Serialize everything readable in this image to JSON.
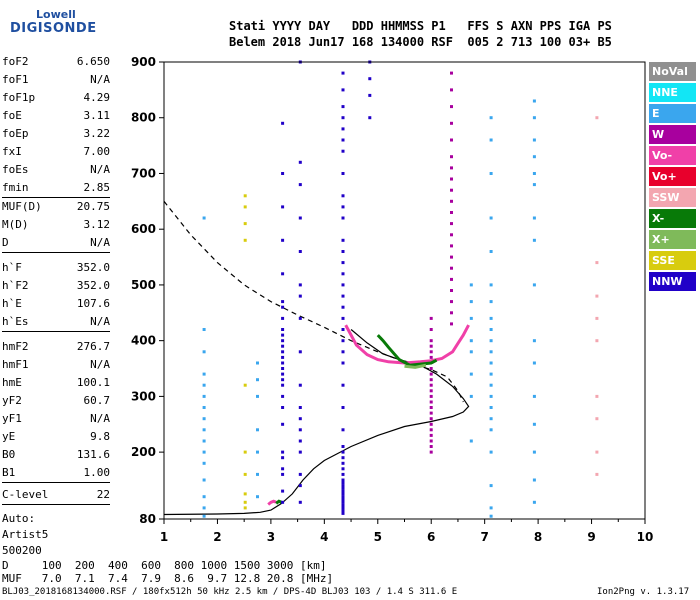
{
  "logo": {
    "top": "Lowell",
    "main": "DIGISONDE"
  },
  "header": {
    "line1": "Stati YYYY DAY   DDD HHMMSS P1   FFS S AXN PPS IGA PS",
    "line2": "Belem 2018 Jun17 168 134000 RSF  005 2 713 100 03+ B5"
  },
  "params": {
    "group1": [
      {
        "label": "foF2",
        "value": "6.650"
      },
      {
        "label": "foF1",
        "value": "N/A"
      },
      {
        "label": "foF1p",
        "value": "4.29"
      },
      {
        "label": "foE",
        "value": "3.11"
      },
      {
        "label": "foEp",
        "value": "3.22"
      },
      {
        "label": "fxI",
        "value": "7.00"
      },
      {
        "label": "foEs",
        "value": "N/A"
      },
      {
        "label": "fmin",
        "value": "2.85"
      }
    ],
    "group2": [
      {
        "label": "MUF(D)",
        "value": "20.75"
      },
      {
        "label": "M(D)",
        "value": "3.12"
      },
      {
        "label": "D",
        "value": "N/A"
      }
    ],
    "group3": [
      {
        "label": "h`F",
        "value": "352.0"
      },
      {
        "label": "h`F2",
        "value": "352.0"
      },
      {
        "label": "h`E",
        "value": "107.6"
      },
      {
        "label": "h`Es",
        "value": "N/A"
      }
    ],
    "group4": [
      {
        "label": "hmF2",
        "value": "276.7"
      },
      {
        "label": "hmF1",
        "value": "N/A"
      },
      {
        "label": "hmE",
        "value": "100.1"
      },
      {
        "label": "yF2",
        "value": "60.7"
      },
      {
        "label": "yF1",
        "value": "N/A"
      },
      {
        "label": "yE",
        "value": "9.8"
      },
      {
        "label": "B0",
        "value": "131.6"
      },
      {
        "label": "B1",
        "value": "1.00"
      }
    ],
    "clevel": {
      "label": "C-level",
      "value": "22"
    },
    "auto": [
      "Auto:",
      "Artist5",
      "500200"
    ]
  },
  "legend": [
    {
      "label": "NoVal",
      "color": "#909090",
      "text_color": "#ffffff"
    },
    {
      "label": "NNE",
      "color": "#12e6f5",
      "text_color": "#ffffff"
    },
    {
      "label": "E",
      "color": "#3aa6ee",
      "text_color": "#ffffff"
    },
    {
      "label": "W",
      "color": "#a8009e",
      "text_color": "#ffffff"
    },
    {
      "label": "Vo-",
      "color": "#f040a8",
      "text_color": "#ffffff"
    },
    {
      "label": "Vo+",
      "color": "#e8002c",
      "text_color": "#ffffff"
    },
    {
      "label": "SSW",
      "color": "#f3a6b0",
      "text_color": "#ffffff"
    },
    {
      "label": "X-",
      "color": "#087a08",
      "text_color": "#ffffff"
    },
    {
      "label": "X+",
      "color": "#7fba5a",
      "text_color": "#ffffff"
    },
    {
      "label": "SSE",
      "color": "#d8cc0e",
      "text_color": "#ffffff"
    },
    {
      "label": "NNW",
      "color": "#2000c8",
      "text_color": "#ffffff"
    }
  ],
  "bottom": {
    "line1": "D     100  200  400  600  800 1000 1500 3000 [km]",
    "line2": "MUF   7.0  7.1  7.4  7.9  8.6  9.7 12.8 20.8 [MHz]"
  },
  "footer": {
    "left": "BLJ03_2018168134000.RSF / 180fx512h 50 kHz 2.5 km / DPS-4D BLJ03 103 / 1.4 S 311.6 E",
    "right": "Ion2Png v. 1.3.17"
  },
  "chart_data": {
    "type": "scatter",
    "x_ticks": [
      1,
      2,
      3,
      4,
      5,
      6,
      7,
      8,
      9,
      10
    ],
    "y_ticks": [
      80,
      200,
      300,
      400,
      500,
      600,
      700,
      800,
      900
    ],
    "xlim": [
      1,
      10
    ],
    "ylim": [
      80,
      900
    ],
    "grid": false,
    "legend_placement": "right",
    "series": [
      {
        "type": "line",
        "style": "dashed",
        "color": "#000000",
        "points": [
          [
            1.0,
            650
          ],
          [
            1.5,
            590
          ],
          [
            2.0,
            540
          ],
          [
            2.5,
            500
          ],
          [
            3.0,
            470
          ],
          [
            3.5,
            446
          ],
          [
            4.0,
            424
          ],
          [
            4.5,
            400
          ],
          [
            5.0,
            380
          ],
          [
            5.5,
            362
          ],
          [
            6.0,
            348
          ],
          [
            6.3,
            335
          ],
          [
            6.5,
            310
          ],
          [
            6.6,
            290
          ]
        ]
      },
      {
        "type": "line",
        "style": "solid",
        "color": "#000000",
        "points": [
          [
            1.0,
            88
          ],
          [
            2.0,
            89
          ],
          [
            2.5,
            90
          ],
          [
            2.8,
            92
          ],
          [
            3.0,
            96
          ],
          [
            3.2,
            108
          ],
          [
            3.4,
            125
          ],
          [
            3.6,
            150
          ],
          [
            3.8,
            170
          ],
          [
            4.0,
            185
          ],
          [
            4.5,
            210
          ],
          [
            5.0,
            230
          ],
          [
            5.5,
            246
          ],
          [
            6.0,
            255
          ],
          [
            6.4,
            264
          ],
          [
            6.6,
            272
          ],
          [
            6.7,
            282
          ],
          [
            6.6,
            296
          ],
          [
            6.4,
            318
          ],
          [
            6.1,
            340
          ],
          [
            5.8,
            356
          ],
          [
            5.4,
            366
          ],
          [
            5.1,
            376
          ],
          [
            4.8,
            396
          ],
          [
            4.5,
            420
          ]
        ]
      },
      {
        "type": "trace",
        "color": "#f040a8",
        "points": [
          [
            4.4,
            428
          ],
          [
            4.5,
            410
          ],
          [
            4.6,
            392
          ],
          [
            4.8,
            375
          ],
          [
            5.0,
            366
          ],
          [
            5.2,
            362
          ],
          [
            5.5,
            360
          ],
          [
            5.8,
            362
          ],
          [
            6.0,
            364
          ],
          [
            6.2,
            368
          ],
          [
            6.4,
            380
          ],
          [
            6.5,
            395
          ],
          [
            6.6,
            410
          ],
          [
            6.7,
            428
          ]
        ]
      },
      {
        "type": "trace",
        "color": "#087a08",
        "points": [
          [
            5.0,
            410
          ],
          [
            5.1,
            400
          ],
          [
            5.2,
            388
          ],
          [
            5.4,
            366
          ],
          [
            5.6,
            356
          ],
          [
            5.8,
            358
          ],
          [
            6.0,
            360
          ],
          [
            6.1,
            365
          ]
        ]
      },
      {
        "type": "trace",
        "color": "#7fba5a",
        "points": [
          [
            5.5,
            354
          ],
          [
            5.7,
            352
          ],
          [
            5.9,
            356
          ]
        ]
      },
      {
        "type": "trace",
        "color": "#f040a8",
        "points": [
          [
            2.95,
            106
          ],
          [
            3.0,
            110
          ],
          [
            3.05,
            112
          ],
          [
            3.1,
            110
          ]
        ]
      },
      {
        "type": "trace",
        "color": "#087a08",
        "points": [
          [
            3.1,
            108
          ],
          [
            3.15,
            112
          ],
          [
            3.2,
            110
          ]
        ]
      },
      {
        "type": "column",
        "color": "#2000c8",
        "x": 4.35,
        "y_values": [
          90,
          95,
          100,
          105,
          110,
          115,
          120,
          125,
          130,
          135,
          140,
          145,
          150,
          160,
          170,
          180,
          190,
          200,
          210,
          240,
          280,
          320,
          360,
          380,
          400,
          420,
          440,
          460,
          480,
          500,
          520,
          540,
          560,
          580,
          620,
          640,
          660,
          700,
          740,
          760,
          780,
          800,
          820,
          850,
          880
        ]
      },
      {
        "type": "column",
        "color": "#a8009e",
        "x": 6.0,
        "y_values": [
          200,
          210,
          220,
          230,
          240,
          250,
          260,
          270,
          280,
          290,
          300,
          310,
          320,
          330,
          340,
          350,
          370,
          380,
          390,
          400,
          420,
          440
        ]
      },
      {
        "type": "column",
        "color": "#a8009e",
        "x": 6.38,
        "y_values": [
          430,
          450,
          470,
          490,
          510,
          530,
          550,
          570,
          590,
          610,
          630,
          650,
          670,
          690,
          710,
          730,
          760,
          790,
          820,
          850,
          880
        ]
      },
      {
        "type": "column",
        "color": "#3aa6ee",
        "x": 7.12,
        "y_values": [
          85,
          100,
          140,
          200,
          240,
          260,
          280,
          300,
          320,
          340,
          360,
          380,
          400,
          420,
          440,
          470,
          500,
          560,
          620,
          700,
          760,
          800
        ]
      },
      {
        "type": "column",
        "color": "#3aa6ee",
        "x": 7.93,
        "y_values": [
          110,
          150,
          200,
          250,
          300,
          360,
          400,
          500,
          580,
          620,
          680,
          700,
          730,
          760,
          800,
          830
        ]
      },
      {
        "type": "column",
        "color": "#2000c8",
        "x": 3.22,
        "y_values": [
          110,
          130,
          160,
          170,
          190,
          200,
          250,
          280,
          300,
          320,
          330,
          340,
          350,
          360,
          370,
          380,
          390,
          400,
          410,
          420,
          440,
          460,
          470,
          520,
          580,
          640,
          700,
          790
        ]
      },
      {
        "type": "column",
        "color": "#3aa6ee",
        "x": 1.75,
        "y_values": [
          85,
          100,
          120,
          150,
          180,
          200,
          220,
          240,
          260,
          280,
          300,
          320,
          340,
          380,
          420,
          620
        ]
      },
      {
        "type": "column",
        "color": "#2000c8",
        "x": 3.55,
        "y_values": [
          110,
          140,
          160,
          200,
          220,
          240,
          260,
          280,
          320,
          380,
          440,
          480,
          500,
          560,
          620,
          680,
          720,
          900
        ]
      },
      {
        "type": "column",
        "color": "#f3a6b0",
        "x": 9.1,
        "y_values": [
          160,
          200,
          260,
          300,
          400,
          440,
          480,
          540,
          800
        ]
      },
      {
        "type": "column",
        "color": "#3aa6ee",
        "x": 6.75,
        "y_values": [
          220,
          300,
          340,
          380,
          400,
          440,
          470,
          500
        ]
      },
      {
        "type": "column",
        "color": "#3aa6ee",
        "x": 2.75,
        "y_values": [
          120,
          160,
          200,
          240,
          300,
          330,
          360
        ]
      },
      {
        "type": "column",
        "color": "#d8cc0e",
        "x": 2.52,
        "y_values": [
          100,
          110,
          125,
          160,
          200,
          320,
          580,
          610,
          640,
          660
        ]
      },
      {
        "type": "column",
        "color": "#2000c8",
        "x": 4.85,
        "y_values": [
          800,
          840,
          870,
          900
        ]
      }
    ]
  }
}
